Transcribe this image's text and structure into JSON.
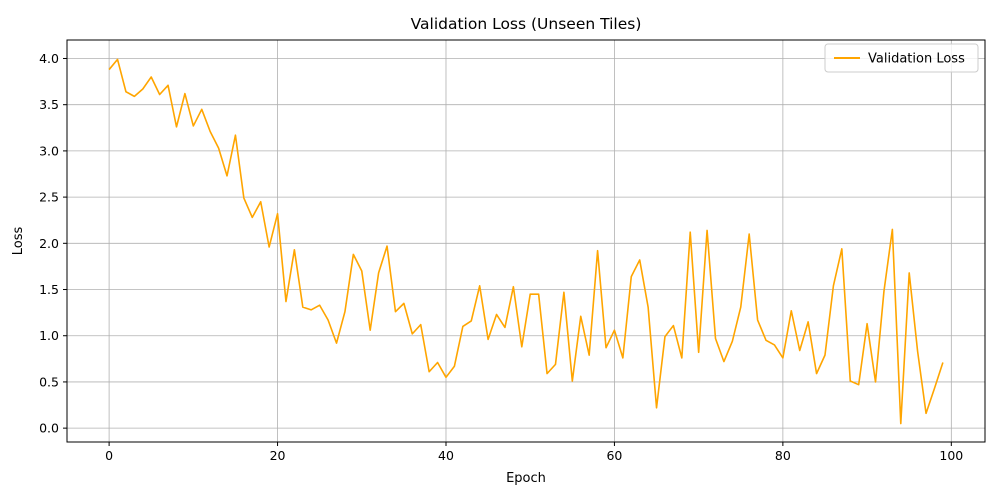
{
  "chart_data": {
    "type": "line",
    "title": "Validation Loss (Unseen Tiles)",
    "xlabel": "Epoch",
    "ylabel": "Loss",
    "xlim": [
      -5,
      104
    ],
    "ylim": [
      -0.15,
      4.2
    ],
    "xticks": [
      0,
      20,
      40,
      60,
      80,
      100
    ],
    "yticks": [
      0.0,
      0.5,
      1.0,
      1.5,
      2.0,
      2.5,
      3.0,
      3.5,
      4.0
    ],
    "xtick_labels": [
      "0",
      "20",
      "40",
      "60",
      "80",
      "100"
    ],
    "ytick_labels": [
      "0.0",
      "0.5",
      "1.0",
      "1.5",
      "2.0",
      "2.5",
      "3.0",
      "3.5",
      "4.0"
    ],
    "grid": true,
    "legend": {
      "position": "top-right"
    },
    "series": [
      {
        "name": "Validation Loss",
        "color": "#ffa500",
        "x_start": 0,
        "values": [
          3.88,
          3.99,
          3.64,
          3.59,
          3.67,
          3.8,
          3.61,
          3.71,
          3.26,
          3.62,
          3.27,
          3.45,
          3.21,
          3.03,
          2.73,
          3.17,
          2.49,
          2.28,
          2.45,
          1.96,
          2.32,
          1.37,
          1.93,
          1.31,
          1.28,
          1.33,
          1.17,
          0.92,
          1.26,
          1.88,
          1.7,
          1.06,
          1.68,
          1.97,
          1.26,
          1.35,
          1.02,
          1.12,
          0.61,
          0.71,
          0.55,
          0.67,
          1.1,
          1.16,
          1.54,
          0.96,
          1.23,
          1.09,
          1.53,
          0.88,
          1.45,
          1.45,
          0.59,
          0.69,
          1.47,
          0.51,
          1.21,
          0.79,
          1.92,
          0.87,
          1.06,
          0.76,
          1.64,
          1.82,
          1.31,
          0.22,
          0.99,
          1.11,
          0.76,
          2.12,
          0.82,
          2.14,
          0.97,
          0.72,
          0.94,
          1.31,
          2.1,
          1.17,
          0.95,
          0.9,
          0.76,
          1.27,
          0.84,
          1.15,
          0.59,
          0.79,
          1.54,
          1.94,
          0.51,
          0.47,
          1.13,
          0.5,
          1.48,
          2.15,
          0.05,
          1.68,
          0.83,
          0.16,
          0.43,
          0.71
        ]
      }
    ]
  }
}
